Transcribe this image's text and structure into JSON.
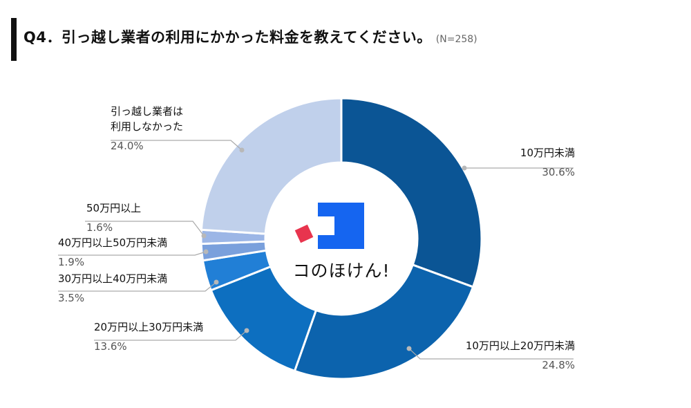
{
  "title": {
    "text": "Q4．引っ越し業者の利用にかかった料金を教えてください。",
    "sample_size": "(N=258)"
  },
  "logo": {
    "text": "コのほけん!"
  },
  "colors": {
    "background": "#ffffff",
    "title_bar": "#111111",
    "leader_line": "#aaaaaa",
    "logo_blue": "#1565f0",
    "logo_red": "#e8344e"
  },
  "chart_data": {
    "type": "pie",
    "variant": "donut",
    "title": "Q4．引っ越し業者の利用にかかった料金を教えてください。",
    "n": 258,
    "unit": "%",
    "slices": [
      {
        "label": "10万円未満",
        "value": 30.6,
        "display": "30.6%",
        "color": "#0b5595"
      },
      {
        "label": "10万円以上20万円未満",
        "value": 24.8,
        "display": "24.8%",
        "color": "#0c63ad"
      },
      {
        "label": "20万円以上30万円未満",
        "value": 13.6,
        "display": "13.6%",
        "color": "#0d6fc0"
      },
      {
        "label": "30万円以上40万円未満",
        "value": 3.5,
        "display": "3.5%",
        "color": "#217fd6"
      },
      {
        "label": "40万円以上50万円未満",
        "value": 1.9,
        "display": "1.9%",
        "color": "#7aa0dc"
      },
      {
        "label": "50万円以上",
        "value": 1.6,
        "display": "1.6%",
        "color": "#9cb6e6"
      },
      {
        "label": "引っ越し業者は利用しなかった",
        "label_lines": [
          "引っ越し業者は",
          "利用しなかった"
        ],
        "value": 24.0,
        "display": "24.0%",
        "color": "#c0d0eb"
      }
    ]
  }
}
